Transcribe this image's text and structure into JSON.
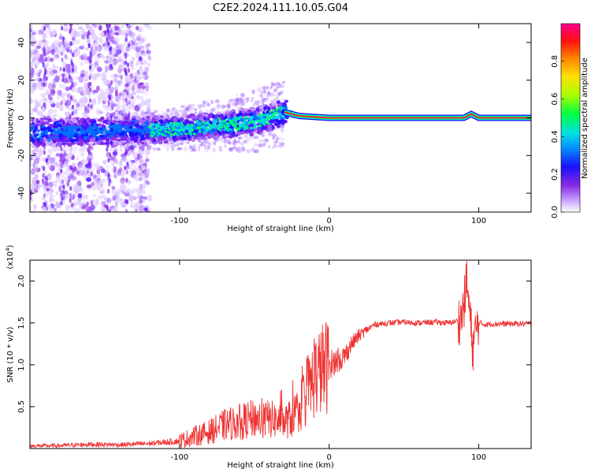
{
  "figure": {
    "title": "C2E2.2024.111.10.05.G04"
  },
  "chart_data": [
    {
      "type": "heatmap",
      "panel": "top",
      "xlabel": "Height of straight line (km)",
      "ylabel": "Frequency (Hz)",
      "xlim": [
        -200,
        135
      ],
      "ylim": [
        -50,
        50
      ],
      "xticks": [
        -100,
        0,
        100
      ],
      "yticks": [
        -40,
        -20,
        0,
        20,
        40
      ],
      "colorbar": {
        "label": "Normalized spectral amplitude",
        "range": [
          0.0,
          1.0
        ],
        "ticks": [
          0.0,
          0.2,
          0.4,
          0.6,
          0.8
        ],
        "colormap": [
          "#ffffff",
          "#9b30ff",
          "#0000ff",
          "#00d8ff",
          "#00ff40",
          "#c8ff00",
          "#ffdc00",
          "#ff7800",
          "#ff0000",
          "#ff0080"
        ]
      },
      "ridge": {
        "description_points_x": [
          -200,
          -150,
          -100,
          -50,
          -30,
          -20,
          0,
          50,
          90,
          95,
          100,
          135
        ],
        "description_points_y": [
          -8,
          -7,
          -6,
          -2,
          3,
          1,
          0,
          0,
          0,
          2,
          0,
          0
        ]
      }
    },
    {
      "type": "line",
      "panel": "bottom",
      "xlabel": "Height of straight line (km)",
      "ylabel": "SNR (10 * v/v)",
      "yscale_label": "(x10",
      "yscale_exp": "4",
      "ysuffix": ")",
      "xlim": [
        -200,
        135
      ],
      "ylim": [
        0,
        22500
      ],
      "xticks": [
        -100,
        0,
        100
      ],
      "yticks": [
        5000,
        10000,
        15000,
        20000
      ],
      "ytick_labels": [
        "0.5",
        "1.0",
        "1.5",
        "2.0"
      ],
      "series": [
        {
          "name": "SNR",
          "color": "#ee3333",
          "x": [
            -200,
            -180,
            -160,
            -140,
            -120,
            -100,
            -90,
            -80,
            -70,
            -60,
            -50,
            -40,
            -30,
            -25,
            -20,
            -15,
            -10,
            -5,
            0,
            5,
            10,
            15,
            20,
            30,
            40,
            50,
            60,
            70,
            80,
            85,
            88,
            90,
            92,
            94,
            96,
            98,
            100,
            105,
            110,
            120,
            135
          ],
          "values": [
            300,
            350,
            500,
            450,
            600,
            900,
            1500,
            2000,
            2800,
            3200,
            3600,
            3500,
            3200,
            3600,
            5000,
            6500,
            8500,
            9500,
            10000,
            10500,
            11000,
            12500,
            13500,
            14800,
            15000,
            15100,
            15000,
            15100,
            15000,
            15200,
            15400,
            17000,
            20000,
            16000,
            12000,
            14000,
            15000,
            14800,
            14900,
            14900,
            14900
          ]
        }
      ]
    }
  ]
}
